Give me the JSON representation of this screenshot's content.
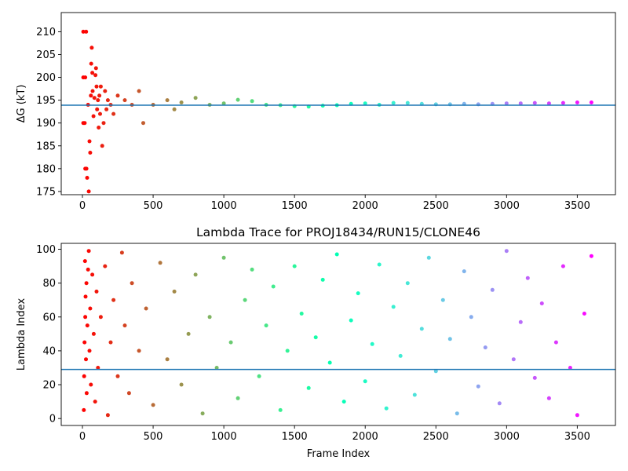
{
  "chart_data": [
    {
      "type": "scatter",
      "title": "",
      "xlabel": "",
      "ylabel": "ΔG (kT)",
      "xlim": [
        -150,
        3770
      ],
      "ylim": [
        174.3,
        214.2
      ],
      "xticks": [
        0,
        500,
        1000,
        1500,
        2000,
        2500,
        3000,
        3500
      ],
      "yticks": [
        175,
        180,
        185,
        190,
        195,
        200,
        205,
        210
      ],
      "grid": false,
      "colormap": "rainbow",
      "color_by": "x",
      "hline": {
        "y": 193.9,
        "color": "#1f77b4"
      },
      "series": [
        {
          "points": [
            [
              6,
              210
            ],
            [
              26,
              210
            ],
            [
              6,
              200
            ],
            [
              20,
              200
            ],
            [
              6,
              190
            ],
            [
              16,
              190
            ],
            [
              20,
              180
            ],
            [
              28,
              180
            ],
            [
              33,
              178
            ],
            [
              45,
              175
            ],
            [
              40,
              194
            ],
            [
              50,
              186
            ],
            [
              55,
              183.5
            ],
            [
              60,
              196
            ],
            [
              62,
              203
            ],
            [
              66,
              206.5
            ],
            [
              70,
              201
            ],
            [
              72,
              197
            ],
            [
              78,
              191.5
            ],
            [
              85,
              195.5
            ],
            [
              92,
              200.5
            ],
            [
              96,
              202
            ],
            [
              100,
              198
            ],
            [
              104,
              193
            ],
            [
              110,
              195
            ],
            [
              115,
              189
            ],
            [
              120,
              196
            ],
            [
              125,
              192
            ],
            [
              130,
              198
            ],
            [
              140,
              185
            ],
            [
              150,
              190
            ],
            [
              160,
              197
            ],
            [
              170,
              193
            ],
            [
              180,
              195
            ],
            [
              200,
              194
            ],
            [
              220,
              192
            ],
            [
              250,
              196
            ],
            [
              300,
              195
            ],
            [
              350,
              194
            ],
            [
              400,
              197
            ],
            [
              430,
              190
            ],
            [
              500,
              194
            ],
            [
              600,
              195
            ],
            [
              650,
              193
            ],
            [
              700,
              194.5
            ],
            [
              800,
              195.5
            ],
            [
              900,
              194
            ],
            [
              1000,
              194.3
            ],
            [
              1100,
              195.1
            ],
            [
              1200,
              194.8
            ],
            [
              1300,
              194
            ],
            [
              1400,
              193.9
            ],
            [
              1500,
              193.7
            ],
            [
              1600,
              193.6
            ],
            [
              1700,
              193.8
            ],
            [
              1800,
              193.9
            ],
            [
              1900,
              194.2
            ],
            [
              2000,
              194.3
            ],
            [
              2100,
              194
            ],
            [
              2200,
              194.4
            ],
            [
              2300,
              194.4
            ],
            [
              2400,
              194.2
            ],
            [
              2500,
              194.1
            ],
            [
              2600,
              194.1
            ],
            [
              2700,
              194.2
            ],
            [
              2800,
              194.1
            ],
            [
              2900,
              194.2
            ],
            [
              3000,
              194.3
            ],
            [
              3100,
              194.3
            ],
            [
              3200,
              194.4
            ],
            [
              3300,
              194.3
            ],
            [
              3400,
              194.4
            ],
            [
              3500,
              194.5
            ],
            [
              3600,
              194.5
            ]
          ]
        }
      ]
    },
    {
      "type": "scatter",
      "title": "Lambda Trace for PROJ18434/RUN15/CLONE46",
      "xlabel": "Frame Index",
      "ylabel": "Lambda Index",
      "xlim": [
        -150,
        3770
      ],
      "ylim": [
        -4.1,
        103.5
      ],
      "xticks": [
        0,
        500,
        1000,
        1500,
        2000,
        2500,
        3000,
        3500
      ],
      "yticks": [
        0,
        20,
        40,
        60,
        80,
        100
      ],
      "grid": false,
      "colormap": "rainbow",
      "color_by": "x",
      "hline": {
        "y": 29,
        "color": "#1f77b4"
      },
      "series": [
        {
          "points": [
            [
              10,
              5
            ],
            [
              12,
              25
            ],
            [
              15,
              45
            ],
            [
              18,
              93
            ],
            [
              20,
              60
            ],
            [
              22,
              72
            ],
            [
              25,
              35
            ],
            [
              28,
              80
            ],
            [
              30,
              15
            ],
            [
              35,
              55
            ],
            [
              40,
              88
            ],
            [
              45,
              99
            ],
            [
              50,
              40
            ],
            [
              55,
              65
            ],
            [
              60,
              20
            ],
            [
              70,
              85
            ],
            [
              80,
              50
            ],
            [
              90,
              10
            ],
            [
              100,
              75
            ],
            [
              110,
              30
            ],
            [
              130,
              60
            ],
            [
              160,
              90
            ],
            [
              180,
              2
            ],
            [
              200,
              45
            ],
            [
              220,
              70
            ],
            [
              250,
              25
            ],
            [
              280,
              98
            ],
            [
              300,
              55
            ],
            [
              330,
              15
            ],
            [
              350,
              80
            ],
            [
              400,
              40
            ],
            [
              450,
              65
            ],
            [
              500,
              8
            ],
            [
              550,
              92
            ],
            [
              600,
              35
            ],
            [
              650,
              75
            ],
            [
              700,
              20
            ],
            [
              750,
              50
            ],
            [
              800,
              85
            ],
            [
              850,
              3
            ],
            [
              900,
              60
            ],
            [
              950,
              30
            ],
            [
              1000,
              95
            ],
            [
              1050,
              45
            ],
            [
              1100,
              12
            ],
            [
              1150,
              70
            ],
            [
              1200,
              88
            ],
            [
              1250,
              25
            ],
            [
              1300,
              55
            ],
            [
              1350,
              78
            ],
            [
              1400,
              5
            ],
            [
              1450,
              40
            ],
            [
              1500,
              90
            ],
            [
              1550,
              62
            ],
            [
              1600,
              18
            ],
            [
              1650,
              48
            ],
            [
              1700,
              82
            ],
            [
              1750,
              33
            ],
            [
              1800,
              97
            ],
            [
              1850,
              10
            ],
            [
              1900,
              58
            ],
            [
              1950,
              74
            ],
            [
              2000,
              22
            ],
            [
              2050,
              44
            ],
            [
              2100,
              91
            ],
            [
              2150,
              6
            ],
            [
              2200,
              66
            ],
            [
              2250,
              37
            ],
            [
              2300,
              80
            ],
            [
              2350,
              14
            ],
            [
              2400,
              53
            ],
            [
              2450,
              95
            ],
            [
              2500,
              28
            ],
            [
              2550,
              70
            ],
            [
              2600,
              47
            ],
            [
              2650,
              3
            ],
            [
              2700,
              87
            ],
            [
              2750,
              60
            ],
            [
              2800,
              19
            ],
            [
              2850,
              42
            ],
            [
              2900,
              76
            ],
            [
              2950,
              9
            ],
            [
              3000,
              99
            ],
            [
              3050,
              35
            ],
            [
              3100,
              57
            ],
            [
              3150,
              83
            ],
            [
              3200,
              24
            ],
            [
              3250,
              68
            ],
            [
              3300,
              12
            ],
            [
              3350,
              45
            ],
            [
              3400,
              90
            ],
            [
              3450,
              30
            ],
            [
              3500,
              2
            ],
            [
              3550,
              62
            ],
            [
              3600,
              96
            ]
          ]
        }
      ]
    }
  ]
}
